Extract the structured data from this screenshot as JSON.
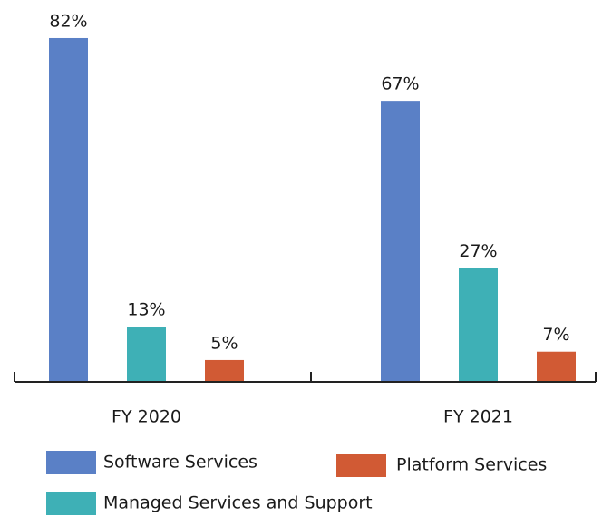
{
  "chart_data": {
    "type": "bar",
    "categories": [
      "FY 2020",
      "FY 2021"
    ],
    "series": [
      {
        "name": "Software Services",
        "color": "#5a80c6",
        "values": [
          82,
          67
        ],
        "value_labels": [
          "82%",
          "67%"
        ]
      },
      {
        "name": "Managed Services and Support",
        "color": "#3eb0b6",
        "values": [
          13,
          27
        ],
        "value_labels": [
          "13%",
          "27%"
        ]
      },
      {
        "name": "Platform Services",
        "color": "#d15a34",
        "values": [
          5,
          7
        ],
        "value_labels": [
          "5%",
          "7%"
        ]
      }
    ],
    "legend": "bottom"
  }
}
